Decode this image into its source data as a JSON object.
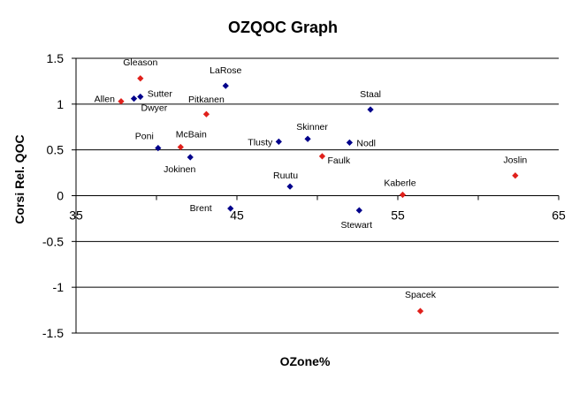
{
  "chart_data": {
    "type": "scatter",
    "title": "OZQOC Graph",
    "xlabel": "OZone%",
    "ylabel": "Corsi Rel. QOC",
    "xlim": [
      35,
      65
    ],
    "ylim": [
      -1.5,
      1.5
    ],
    "xticks": [
      "35",
      "45",
      "55",
      "65"
    ],
    "yticks": [
      "1.5",
      "1",
      "0.5",
      "0",
      "-0.5",
      "-1",
      "-1.5"
    ],
    "grid": "horizontal",
    "legend": "none",
    "colors": {
      "blue": "#00008B",
      "red": "#E0201B"
    },
    "points": [
      {
        "label": "Gleason",
        "x": 39.0,
        "y": 1.28,
        "color": "red"
      },
      {
        "label": "LaRose",
        "x": 44.3,
        "y": 1.2,
        "color": "blue"
      },
      {
        "label": "Allen",
        "x": 37.8,
        "y": 1.03,
        "color": "red"
      },
      {
        "label": "Sutter",
        "x": 39.0,
        "y": 1.08,
        "color": "blue"
      },
      {
        "label": "Dwyer",
        "x": 38.6,
        "y": 1.06,
        "color": "blue"
      },
      {
        "label": "Pitkanen",
        "x": 43.1,
        "y": 0.89,
        "color": "red"
      },
      {
        "label": "Staal",
        "x": 53.3,
        "y": 0.94,
        "color": "blue"
      },
      {
        "label": "Poni",
        "x": 40.1,
        "y": 0.52,
        "color": "blue"
      },
      {
        "label": "McBain",
        "x": 41.5,
        "y": 0.53,
        "color": "red"
      },
      {
        "label": "Jokinen",
        "x": 42.1,
        "y": 0.42,
        "color": "blue"
      },
      {
        "label": "Tlusty",
        "x": 47.6,
        "y": 0.59,
        "color": "blue"
      },
      {
        "label": "Skinner",
        "x": 49.4,
        "y": 0.62,
        "color": "blue"
      },
      {
        "label": "Nodl",
        "x": 52.0,
        "y": 0.58,
        "color": "blue"
      },
      {
        "label": "Faulk",
        "x": 50.3,
        "y": 0.43,
        "color": "red"
      },
      {
        "label": "Joslin",
        "x": 62.3,
        "y": 0.22,
        "color": "red"
      },
      {
        "label": "Ruutu",
        "x": 48.3,
        "y": 0.1,
        "color": "blue"
      },
      {
        "label": "Kaberle",
        "x": 55.3,
        "y": 0.01,
        "color": "red"
      },
      {
        "label": "Brent",
        "x": 44.6,
        "y": -0.14,
        "color": "blue"
      },
      {
        "label": "Stewart",
        "x": 52.6,
        "y": -0.16,
        "color": "blue"
      },
      {
        "label": "Spacek",
        "x": 56.4,
        "y": -1.26,
        "color": "red"
      }
    ]
  }
}
